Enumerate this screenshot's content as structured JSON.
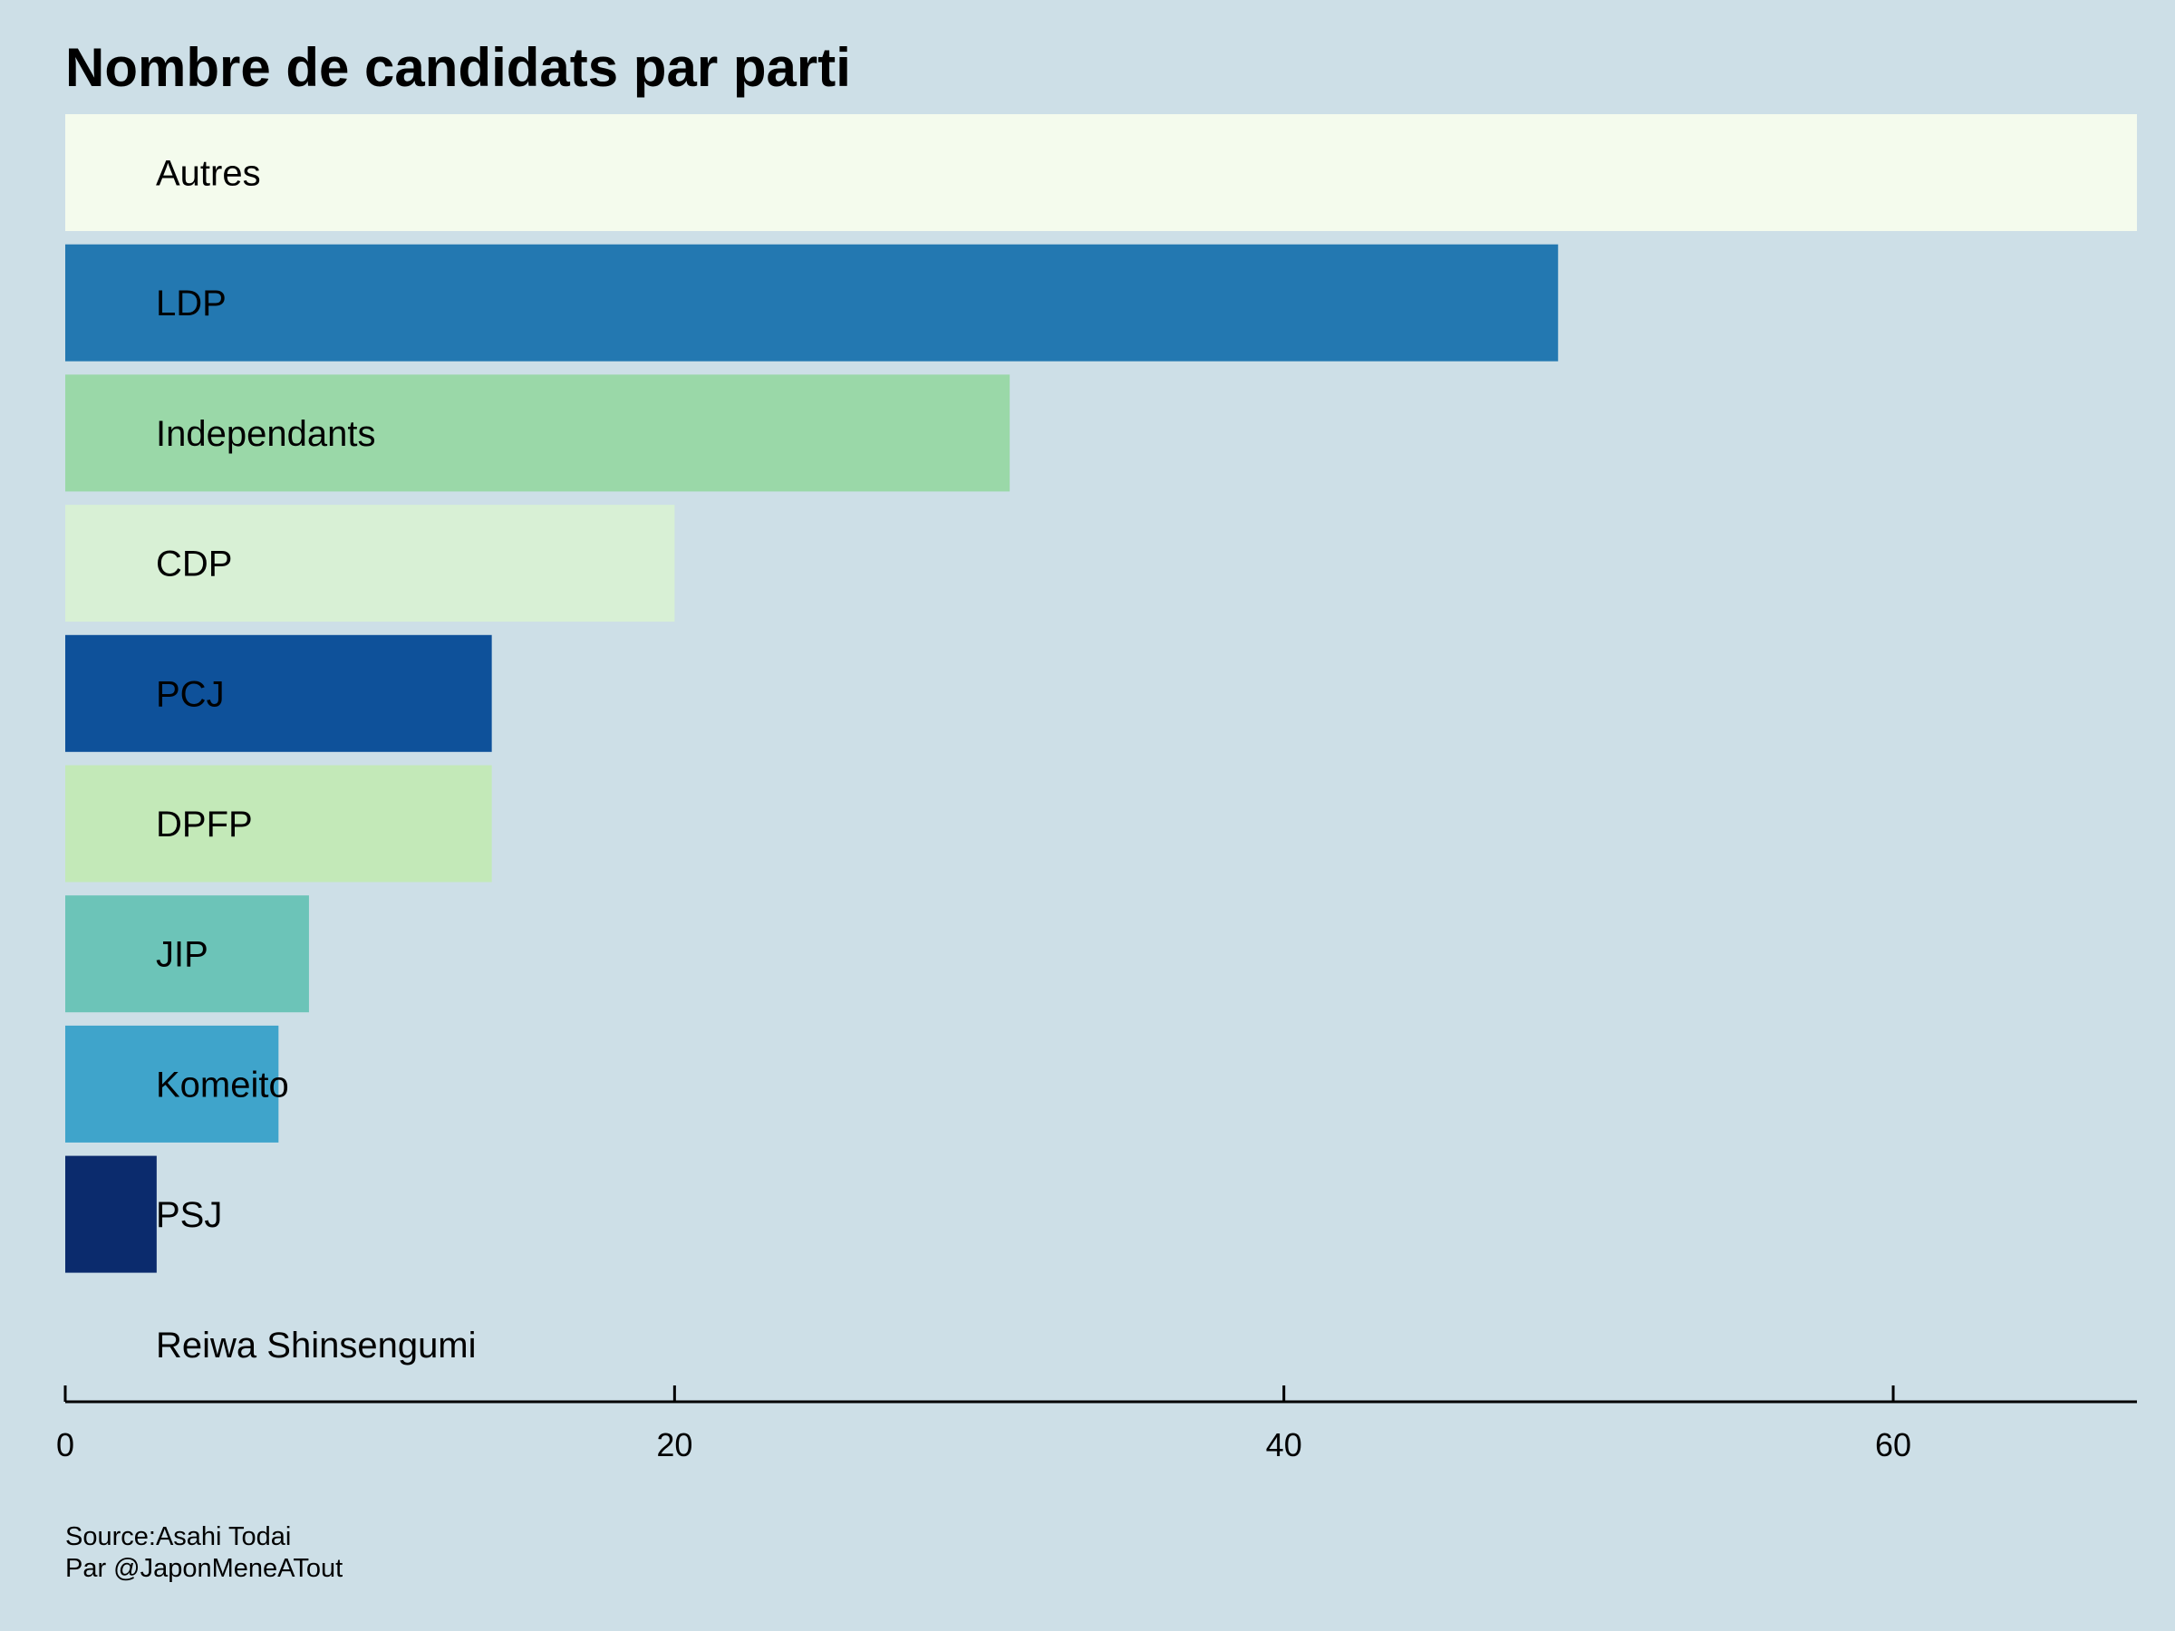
{
  "colors": {
    "background": "#cddfe7",
    "axis": "#000000",
    "text": "#000000"
  },
  "chart_data": {
    "type": "bar",
    "orientation": "horizontal",
    "title": "Nombre de candidats par parti",
    "xlabel": "",
    "ylabel": "",
    "xlim": [
      0,
      68
    ],
    "ticks": [
      "0",
      "20",
      "40",
      "60"
    ],
    "tick_values": [
      0,
      20,
      40,
      60
    ],
    "grid": false,
    "legend": "none",
    "categories": [
      "Autres",
      "LDP",
      "Independants",
      "CDP",
      "PCJ",
      "DPFP",
      "JIP",
      "Komeito",
      "PSJ",
      "Reiwa Shinsengumi"
    ],
    "values": [
      68,
      49,
      31,
      20,
      14,
      14,
      8,
      7,
      3,
      0
    ],
    "bar_colors": [
      "#f4fbed",
      "#2378b1",
      "#9ad8a8",
      "#d8f0d5",
      "#0e519a",
      "#c3e9b8",
      "#6cc4b8",
      "#3fa4cb",
      "#0b2b6d",
      "#cddfe7"
    ]
  },
  "caption": {
    "source": "Source:Asahi Todai",
    "author": "Par @JaponMeneATout"
  }
}
